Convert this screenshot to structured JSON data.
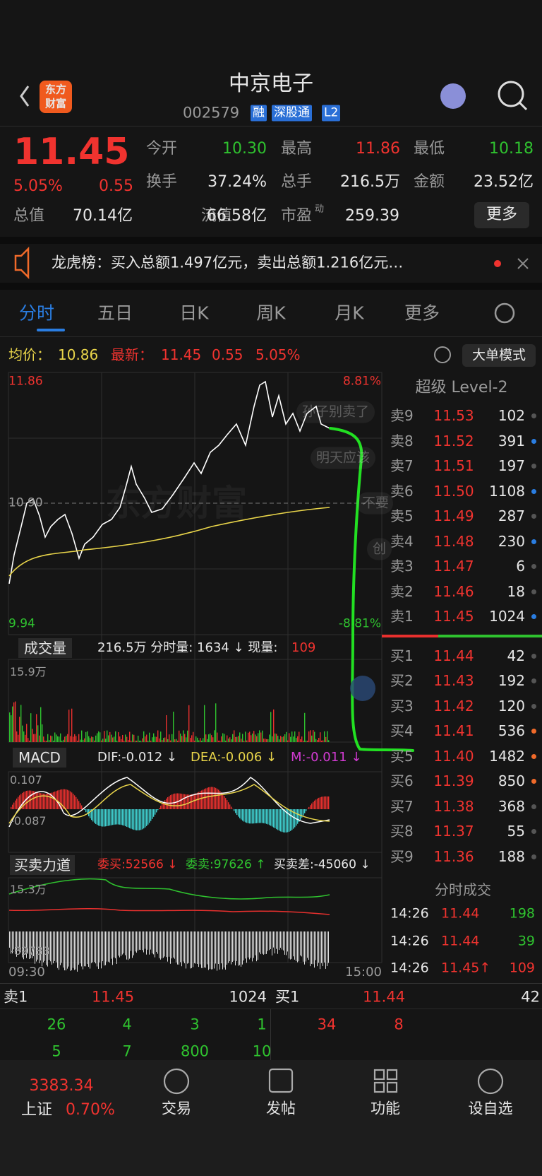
{
  "header": {
    "logo": [
      "东方",
      "财富"
    ],
    "name": "中京电子",
    "code": "002579",
    "tags": [
      "融",
      "深股通",
      "L2"
    ]
  },
  "quote": {
    "price": "11.45",
    "change_pct": "5.05%",
    "change": "0.55",
    "more": "更多",
    "stats": [
      {
        "label": "今开",
        "value": "10.30"
      },
      {
        "label": "最高",
        "value": "11.86"
      },
      {
        "label": "最低",
        "value": "10.18"
      },
      {
        "label": "换手",
        "value": "37.24%"
      },
      {
        "label": "总手",
        "value": "216.5万"
      },
      {
        "label": "金额",
        "value": "23.52亿"
      },
      {
        "label": "总值",
        "value": "70.14亿"
      },
      {
        "label": "流值",
        "value": "66.58亿"
      },
      {
        "label": "市盈",
        "sup": "动",
        "value": "259.39"
      }
    ]
  },
  "news": {
    "text": "龙虎榜：买入总额1.497亿元，卖出总额1.216亿元…"
  },
  "tabs": [
    "分时",
    "五日",
    "日K",
    "周K",
    "月K",
    "更多"
  ],
  "info_bar": {
    "avg_label": "均价：",
    "avg": "10.86",
    "latest_label": "最新：",
    "latest": "11.45",
    "change": "0.55",
    "change_pct": "5.05%",
    "mode_button": "大单模式"
  },
  "chart": {
    "price_high": "11.86",
    "price_mid": "10.90",
    "price_low": "9.94",
    "pct_high": "8.81%",
    "pct_low": "-8.81%",
    "watermark": "东方财富",
    "comments": [
      "孙子别卖了",
      "明天应该",
      "不要",
      "创"
    ]
  },
  "volume": {
    "title": "成交量",
    "info": "216.5万 分时量: 1634 ↓ 现量: ",
    "current": "109",
    "axis_top": "15.9万"
  },
  "macd": {
    "title": "MACD",
    "dif": "DIF:-0.012 ↓",
    "dea": "DEA:-0.006 ↓",
    "m": "M:-0.011 ↓",
    "axis_top": "0.107",
    "axis_bottom": "-0.087"
  },
  "force": {
    "title": "买卖力道",
    "buy": "委买:52566 ↓",
    "sell": "委卖:97626 ↑",
    "diff": "买卖差:-45060 ↓",
    "axis_top": "15.3万",
    "axis_bottom": "-89783"
  },
  "time_axis": [
    "09:30",
    "15:00"
  ],
  "order_book": {
    "title": "超级 Level-2",
    "asks": [
      [
        "卖9",
        "11.53",
        "102"
      ],
      [
        "卖8",
        "11.52",
        "391"
      ],
      [
        "卖7",
        "11.51",
        "197"
      ],
      [
        "卖6",
        "11.50",
        "1108"
      ],
      [
        "卖5",
        "11.49",
        "287"
      ],
      [
        "卖4",
        "11.48",
        "230"
      ],
      [
        "卖3",
        "11.47",
        "6"
      ],
      [
        "卖2",
        "11.46",
        "18"
      ],
      [
        "卖1",
        "11.45",
        "1024"
      ]
    ],
    "bids": [
      [
        "买1",
        "11.44",
        "42"
      ],
      [
        "买2",
        "11.43",
        "192"
      ],
      [
        "买3",
        "11.42",
        "120"
      ],
      [
        "买4",
        "11.41",
        "536"
      ],
      [
        "买5",
        "11.40",
        "1482"
      ],
      [
        "买6",
        "11.39",
        "850"
      ],
      [
        "买7",
        "11.38",
        "368"
      ],
      [
        "买8",
        "11.37",
        "55"
      ],
      [
        "买9",
        "11.36",
        "188"
      ]
    ]
  },
  "trades": {
    "title": "分时成交",
    "rows": [
      [
        "14:26",
        "11.44",
        "198"
      ],
      [
        "14:26",
        "11.44",
        "39"
      ],
      [
        "14:26",
        "11.45↑",
        "109"
      ]
    ]
  },
  "bottom_book": {
    "sell_label": "卖1",
    "sell_price": "11.45",
    "sell_qty": "1024",
    "buy_label": "买1",
    "buy_price": "11.44",
    "buy_qty": "42",
    "sell_rows": [
      [
        "26",
        "4",
        "3",
        "1"
      ],
      [
        "5",
        "7",
        "800",
        "10"
      ]
    ],
    "buy_rows": [
      [
        "34",
        "8"
      ]
    ]
  },
  "nav": {
    "index_value": "3383.34",
    "index_name": "上证",
    "index_pct": "0.70%",
    "items": [
      "交易",
      "发帖",
      "功能",
      "设自选"
    ]
  }
}
